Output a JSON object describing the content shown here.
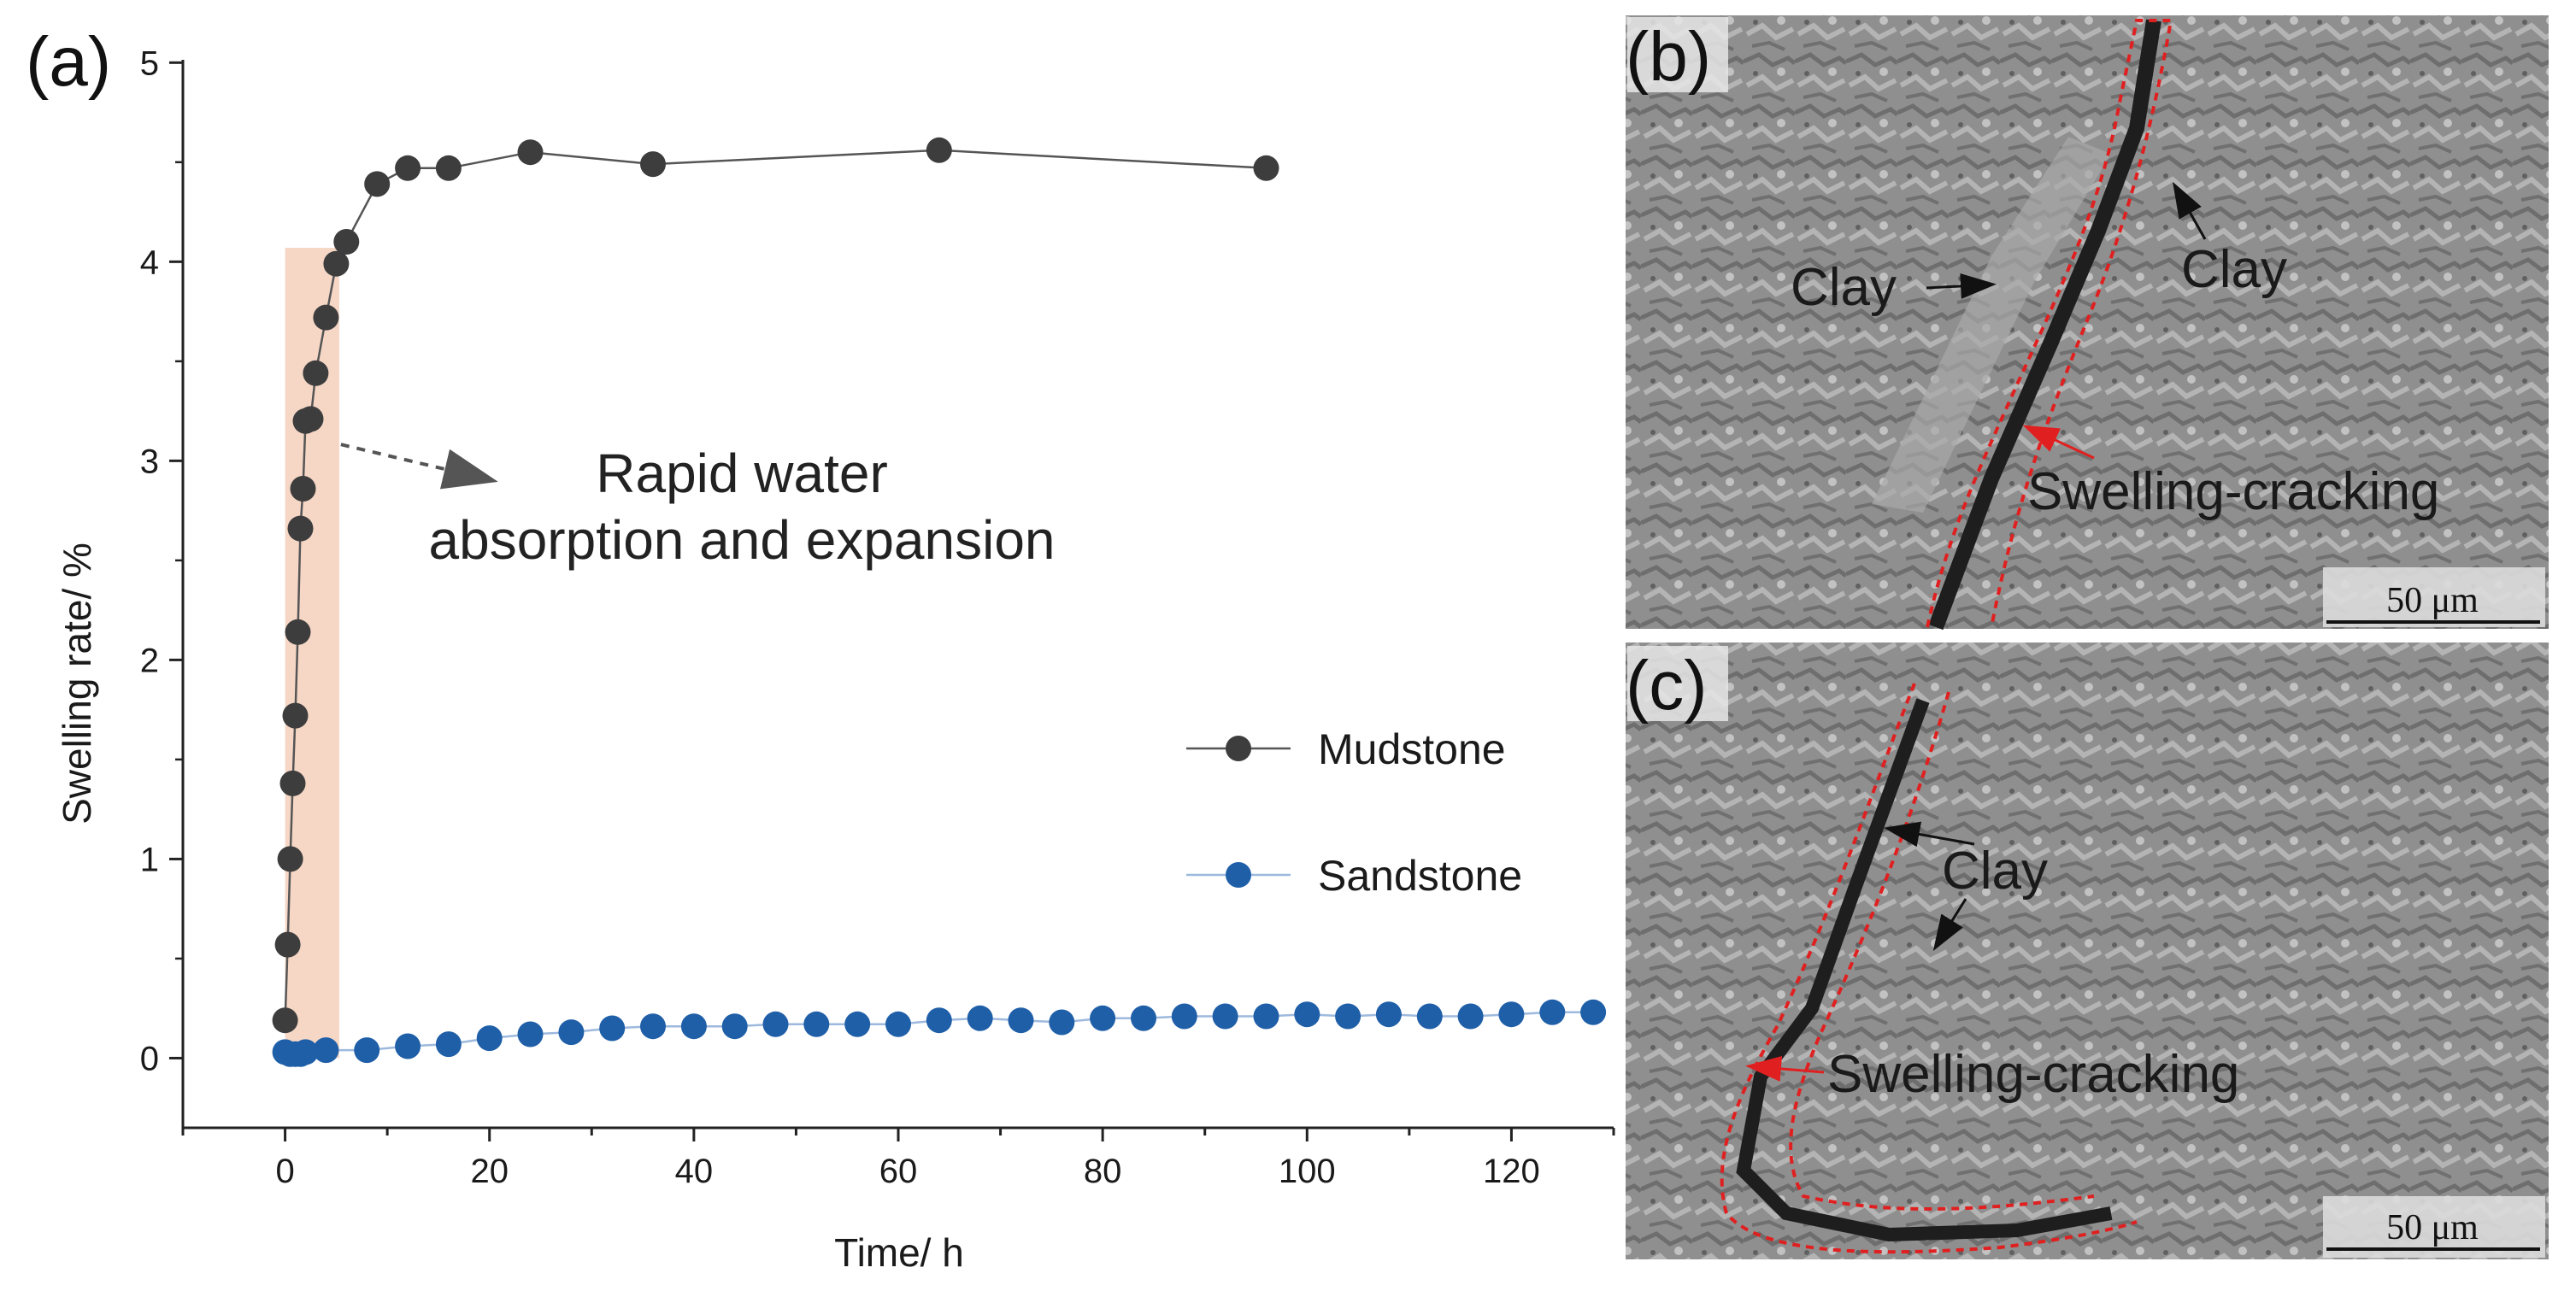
{
  "panels": {
    "a": "(a)",
    "b": "(b)",
    "c": "(c)"
  },
  "annotation": {
    "line1": "Rapid water",
    "line2": "absorption and expansion"
  },
  "sem_b": {
    "labels": [
      "Clay",
      "Clay",
      "Swelling-cracking"
    ],
    "scale_bar": "50 μm"
  },
  "sem_c": {
    "labels": [
      "Clay",
      "Swelling-cracking"
    ],
    "scale_bar": "50 μm"
  },
  "colors": {
    "mudstone": "#3d3d3d",
    "sandstone": "#1f5fa8",
    "highlight": "#f6d7c6",
    "sem_background": "#8c8c8c",
    "crack_outline": "#e02020"
  },
  "chart_data": {
    "type": "scatter",
    "xlabel": "Time/ h",
    "ylabel": "Swelling rate/ %",
    "xlim": [
      -10,
      130
    ],
    "ylim": [
      -0.35,
      5.1
    ],
    "xticks": [
      0,
      20,
      40,
      60,
      80,
      100,
      120
    ],
    "yticks": [
      0,
      1,
      2,
      3,
      4,
      5
    ],
    "highlight_x": [
      0,
      5.3
    ],
    "highlight_y": [
      0,
      4.07
    ],
    "legend_position": "center-right",
    "series": [
      {
        "name": "Mudstone",
        "color": "#3d3d3d",
        "line_color": "#555555",
        "x": [
          0,
          0.25,
          0.5,
          0.75,
          1,
          1.25,
          1.5,
          1.75,
          2,
          2.5,
          3,
          4,
          5,
          6,
          9,
          12,
          16,
          24,
          36,
          64,
          96
        ],
        "y": [
          0.19,
          0.57,
          1.0,
          1.38,
          1.72,
          2.14,
          2.66,
          2.86,
          3.2,
          3.21,
          3.44,
          3.72,
          3.99,
          4.1,
          4.39,
          4.47,
          4.47,
          4.55,
          4.49,
          4.56,
          4.47
        ]
      },
      {
        "name": "Sandstone",
        "color": "#1f5fa8",
        "line_color": "#9db9de",
        "x": [
          0,
          0.5,
          1,
          1.5,
          2,
          4,
          8,
          12,
          16,
          20,
          24,
          28,
          32,
          36,
          40,
          44,
          48,
          52,
          56,
          60,
          64,
          68,
          72,
          76,
          80,
          84,
          88,
          92,
          96,
          100,
          104,
          108,
          112,
          116,
          120,
          124,
          128
        ],
        "y": [
          0.03,
          0.02,
          0.02,
          0.02,
          0.03,
          0.04,
          0.04,
          0.06,
          0.07,
          0.1,
          0.12,
          0.13,
          0.15,
          0.16,
          0.16,
          0.16,
          0.17,
          0.17,
          0.17,
          0.17,
          0.19,
          0.2,
          0.19,
          0.18,
          0.2,
          0.2,
          0.21,
          0.21,
          0.21,
          0.22,
          0.21,
          0.22,
          0.21,
          0.21,
          0.22,
          0.23,
          0.23
        ]
      }
    ]
  }
}
